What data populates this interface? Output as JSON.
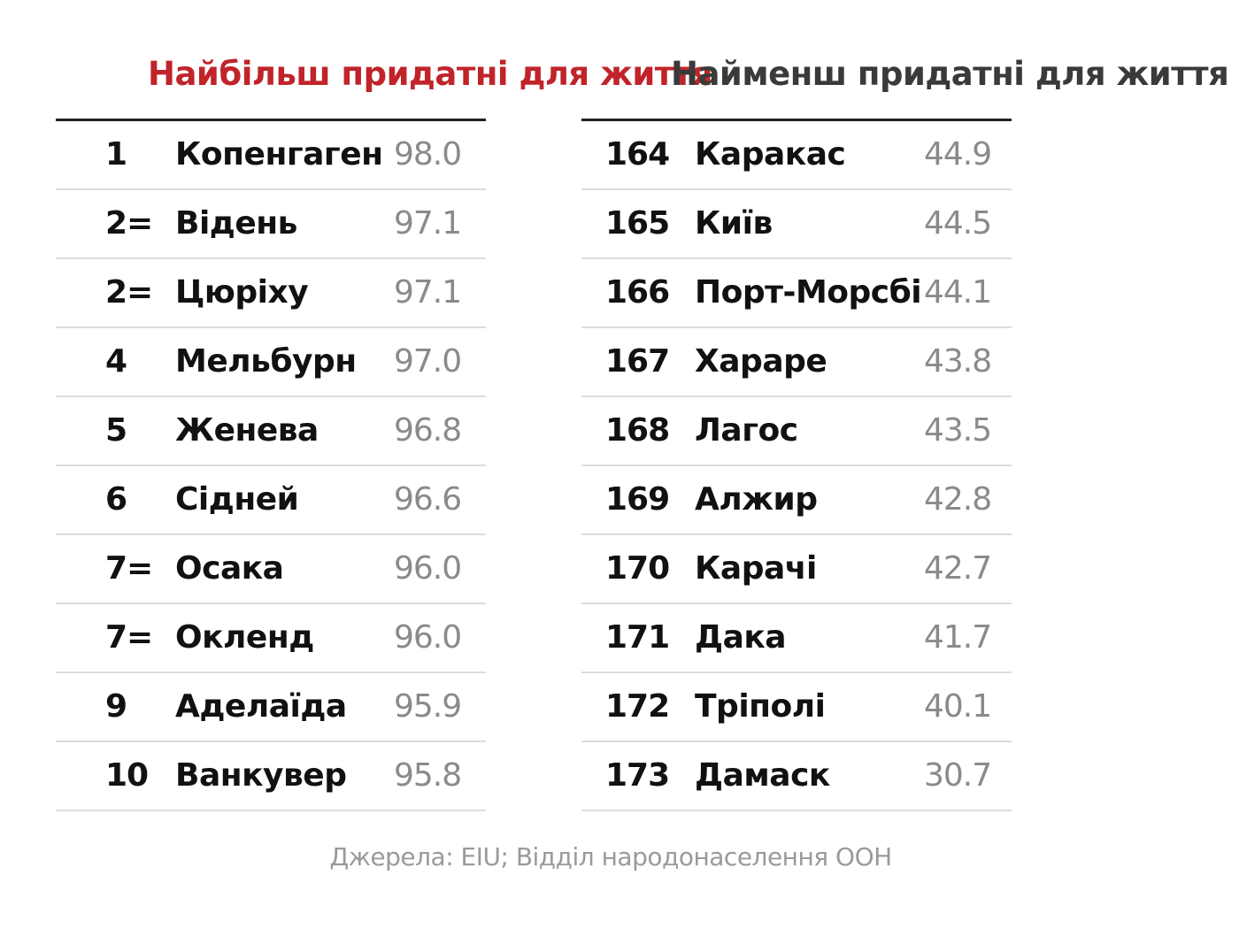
{
  "headings": {
    "best": "Найбільш придатні для життя",
    "worst": "Найменш придатні для життя"
  },
  "colors": {
    "best_heading": "#c0242a",
    "worst_heading": "#3a3a3a",
    "score": "#8a8a8a"
  },
  "best": [
    {
      "rank": "1",
      "city": "Копенгаген",
      "score": "98.0"
    },
    {
      "rank": "2=",
      "city": "Відень",
      "score": "97.1"
    },
    {
      "rank": "2=",
      "city": "Цюріху",
      "score": "97.1"
    },
    {
      "rank": "4",
      "city": "Мельбурн",
      "score": "97.0"
    },
    {
      "rank": "5",
      "city": "Женева",
      "score": "96.8"
    },
    {
      "rank": "6",
      "city": "Сідней",
      "score": "96.6"
    },
    {
      "rank": "7=",
      "city": "Осака",
      "score": "96.0"
    },
    {
      "rank": "7=",
      "city": "Окленд",
      "score": "96.0"
    },
    {
      "rank": "9",
      "city": "Аделаїда",
      "score": "95.9"
    },
    {
      "rank": "10",
      "city": "Ванкувер",
      "score": "95.8"
    }
  ],
  "worst": [
    {
      "rank": "164",
      "city": "Каракас",
      "score": "44.9"
    },
    {
      "rank": "165",
      "city": "Київ",
      "score": "44.5"
    },
    {
      "rank": "166",
      "city": "Порт-Морсбі",
      "score": "44.1"
    },
    {
      "rank": "167",
      "city": "Хараре",
      "score": "43.8"
    },
    {
      "rank": "168",
      "city": "Лагос",
      "score": "43.5"
    },
    {
      "rank": "169",
      "city": "Алжир",
      "score": "42.8"
    },
    {
      "rank": "170",
      "city": "Карачі",
      "score": "42.7"
    },
    {
      "rank": "171",
      "city": "Дака",
      "score": "41.7"
    },
    {
      "rank": "172",
      "city": "Тріполі",
      "score": "40.1"
    },
    {
      "rank": "173",
      "city": "Дамаск",
      "score": "30.7"
    }
  ],
  "source": "Джерела: EIU; Відділ народонаселення ООН",
  "chart_data": {
    "type": "table",
    "title": "",
    "tables": [
      {
        "title": "Найбільш придатні для життя",
        "columns": [
          "rank",
          "city",
          "score"
        ],
        "rows": [
          [
            "1",
            "Копенгаген",
            98.0
          ],
          [
            "2=",
            "Відень",
            97.1
          ],
          [
            "2=",
            "Цюріху",
            97.1
          ],
          [
            "4",
            "Мельбурн",
            97.0
          ],
          [
            "5",
            "Женева",
            96.8
          ],
          [
            "6",
            "Сідней",
            96.6
          ],
          [
            "7=",
            "Осака",
            96.0
          ],
          [
            "7=",
            "Окленд",
            96.0
          ],
          [
            "9",
            "Аделаїда",
            95.9
          ],
          [
            "10",
            "Ванкувер",
            95.8
          ]
        ]
      },
      {
        "title": "Найменш придатні для життя",
        "columns": [
          "rank",
          "city",
          "score"
        ],
        "rows": [
          [
            "164",
            "Каракас",
            44.9
          ],
          [
            "165",
            "Київ",
            44.5
          ],
          [
            "166",
            "Порт-Морсбі",
            44.1
          ],
          [
            "167",
            "Хараре",
            43.8
          ],
          [
            "168",
            "Лагос",
            43.5
          ],
          [
            "169",
            "Алжир",
            42.8
          ],
          [
            "170",
            "Карачі",
            42.7
          ],
          [
            "171",
            "Дака",
            41.7
          ],
          [
            "172",
            "Тріполі",
            40.1
          ],
          [
            "173",
            "Дамаск",
            30.7
          ]
        ]
      }
    ],
    "annotations": [
      "Джерела: EIU; Відділ народонаселення ООН"
    ]
  }
}
